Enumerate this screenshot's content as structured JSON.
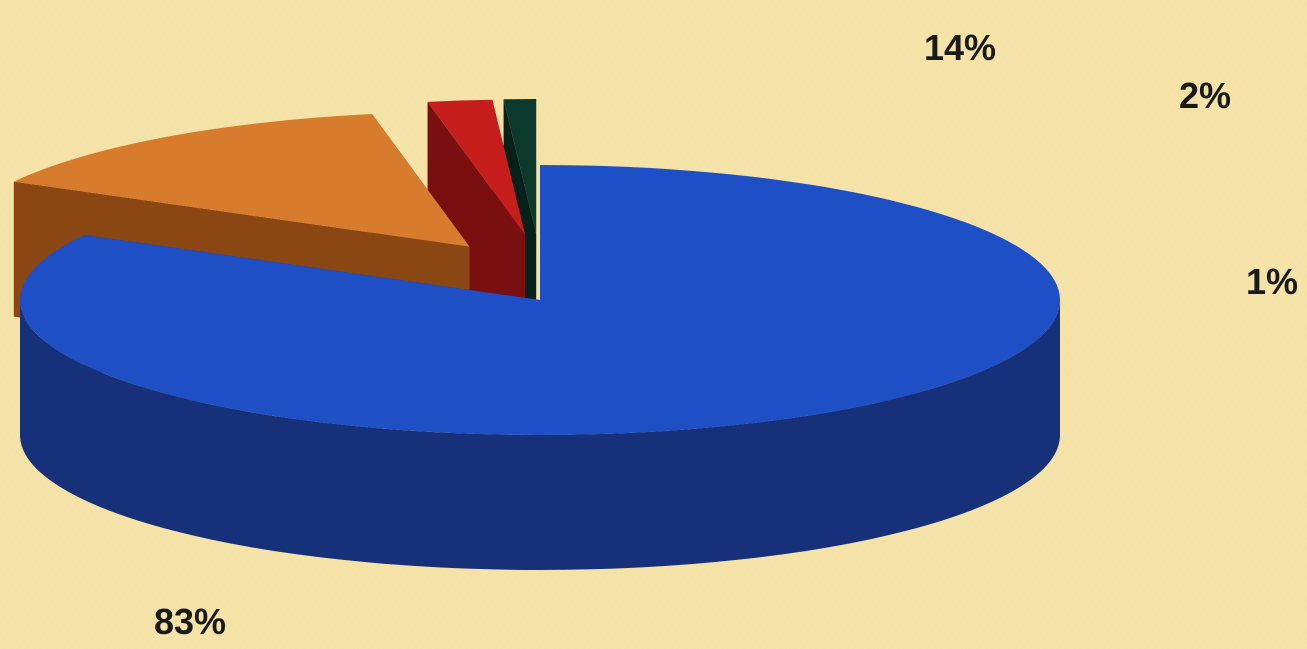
{
  "chart_data": {
    "type": "pie",
    "title": "",
    "legend": false,
    "slices": [
      {
        "value": 83,
        "label": "83%",
        "color": "#1e4fc4",
        "side_color": "#16307a",
        "exploded": false
      },
      {
        "value": 14,
        "label": "14%",
        "color": "#d77b2c",
        "side_color": "#8a4613",
        "exploded": true
      },
      {
        "value": 2,
        "label": "2%",
        "color": "#c61d1d",
        "side_color": "#7a0f0f",
        "exploded": true
      },
      {
        "value": 1,
        "label": "1%",
        "color": "#0b3a2d",
        "side_color": "#06201a",
        "exploded": true
      }
    ],
    "style": "3d-exploded-pie",
    "background_color": "#f4e2a6"
  }
}
